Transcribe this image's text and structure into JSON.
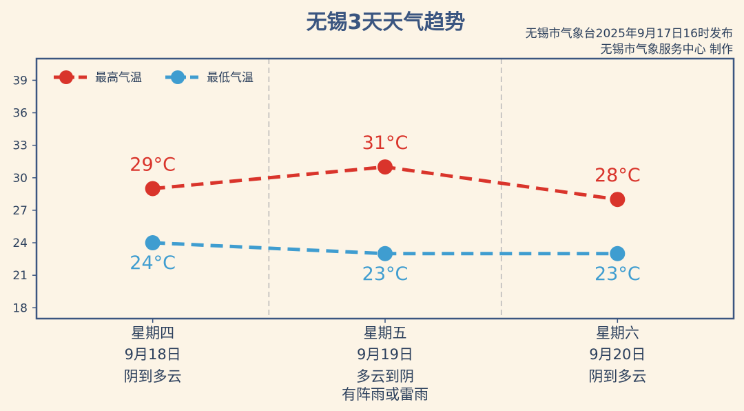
{
  "chart_data": {
    "type": "line",
    "title": "无锡3天天气趋势",
    "subtitle_lines": [
      "无锡市气象台2025年9月17日16时发布",
      "无锡市气象服务中心  制作"
    ],
    "categories": [
      {
        "weekday": "星期四",
        "date": "9月18日",
        "weather": [
          "阴到多云"
        ]
      },
      {
        "weekday": "星期五",
        "date": "9月19日",
        "weather": [
          "多云到阴",
          "有阵雨或雷雨"
        ]
      },
      {
        "weekday": "星期六",
        "date": "9月20日",
        "weather": [
          "阴到多云"
        ]
      }
    ],
    "series": [
      {
        "name": "最高气温",
        "values": [
          29,
          31,
          28
        ],
        "color": "#d9342b",
        "labels": [
          "29°C",
          "31°C",
          "28°C"
        ],
        "label_position": "above"
      },
      {
        "name": "最低气温",
        "values": [
          24,
          23,
          23
        ],
        "color": "#3f9dd0",
        "labels": [
          "24°C",
          "23°C",
          "23°C"
        ],
        "label_position": "below"
      }
    ],
    "ylim": [
      17,
      41
    ],
    "yticks": [
      18,
      21,
      24,
      27,
      30,
      33,
      36,
      39
    ],
    "legend_position": "top-left",
    "line_style": "dashed",
    "frame_color": "#3a5580",
    "separator_color": "#b8b8b8"
  }
}
